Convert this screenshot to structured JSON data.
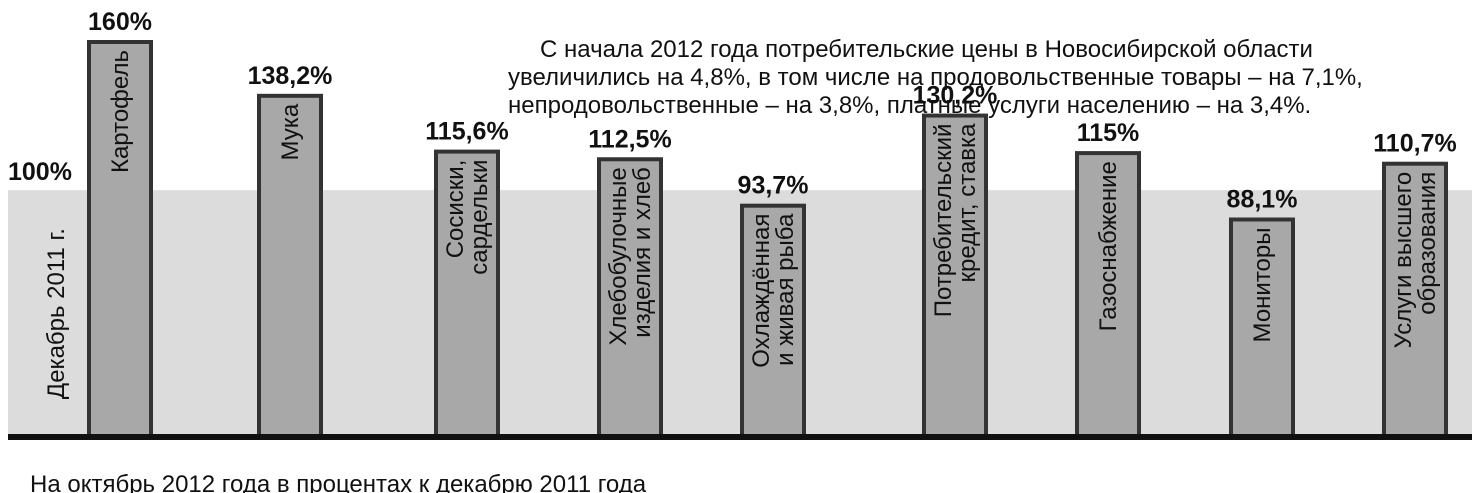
{
  "chart_data": {
    "type": "bar",
    "categories": [
      "Картофель",
      "Мука",
      "Сосиски,\nсардельки",
      "Хлебобулочные\nизделия и хлеб",
      "Охлаждённая\nи живая рыба",
      "Потребительский\nкредит, ставка",
      "Газоснабжение",
      "Мониторы",
      "Услуги высшего\nобразования"
    ],
    "values": [
      160,
      138.2,
      115.6,
      112.5,
      93.7,
      130.2,
      115,
      88.1,
      110.7
    ],
    "value_labels": [
      "160%",
      "138,2%",
      "115,6%",
      "112,5%",
      "93,7%",
      "130,2%",
      "115%",
      "88,1%",
      "110,7%"
    ],
    "color": "#a8a8a8",
    "ylim": [
      0,
      160
    ],
    "reference": {
      "value": 100,
      "label": "100%",
      "name": "Декабрь 2011 г."
    },
    "annotation": [
      "С начала 2012 года потребительские цены в Новосибирской области",
      "увеличились на 4,8%, в том числе на продовольственные товары – на 7,1%,",
      "непродовольственные  – на 3,8%, платные услуги населению – на 3,4%."
    ],
    "note": "На октябрь 2012 года в процентах к декабрю 2011 года"
  }
}
